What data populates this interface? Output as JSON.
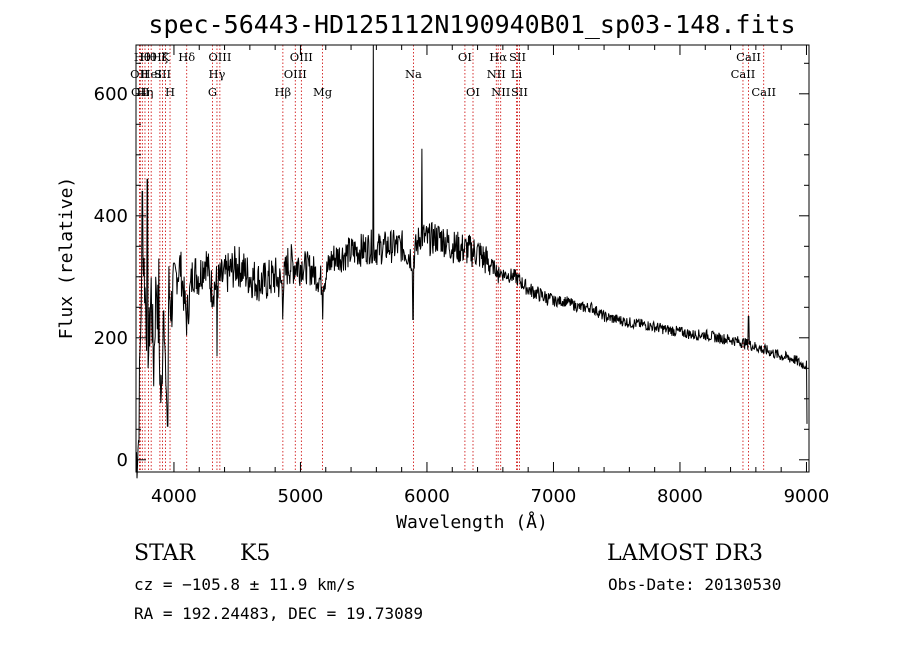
{
  "chart_data": {
    "type": "line",
    "title": "spec-56443-HD125112N190940B01_sp03-148.fits",
    "xlabel": "Wavelength (Å)",
    "ylabel": "Flux (relative)",
    "xlim": [
      3700,
      9020
    ],
    "ylim": [
      -20,
      680
    ],
    "xticks": [
      4000,
      5000,
      6000,
      7000,
      8000,
      9000
    ],
    "yticks": [
      0,
      200,
      400,
      600
    ],
    "series": [
      {
        "name": "spectrum",
        "color": "#000000",
        "anchors": [
          [
            3700,
            0
          ],
          [
            3720,
            30
          ],
          [
            3740,
            260
          ],
          [
            3760,
            330
          ],
          [
            3780,
            240
          ],
          [
            3800,
            180
          ],
          [
            3820,
            280
          ],
          [
            3840,
            150
          ],
          [
            3860,
            300
          ],
          [
            3880,
            200
          ],
          [
            3900,
            80
          ],
          [
            3920,
            290
          ],
          [
            3940,
            60
          ],
          [
            3960,
            280
          ],
          [
            3980,
            250
          ],
          [
            4000,
            290
          ],
          [
            4050,
            320
          ],
          [
            4100,
            230
          ],
          [
            4150,
            310
          ],
          [
            4200,
            300
          ],
          [
            4250,
            330
          ],
          [
            4300,
            280
          ],
          [
            4340,
            290
          ],
          [
            4400,
            300
          ],
          [
            4500,
            320
          ],
          [
            4600,
            300
          ],
          [
            4700,
            290
          ],
          [
            4800,
            300
          ],
          [
            4860,
            285
          ],
          [
            4900,
            320
          ],
          [
            5000,
            320
          ],
          [
            5100,
            310
          ],
          [
            5175,
            290
          ],
          [
            5250,
            330
          ],
          [
            5400,
            340
          ],
          [
            5500,
            345
          ],
          [
            5560,
            350
          ],
          [
            5600,
            345
          ],
          [
            5700,
            350
          ],
          [
            5800,
            350
          ],
          [
            5890,
            330
          ],
          [
            5950,
            370
          ],
          [
            6000,
            360
          ],
          [
            6100,
            365
          ],
          [
            6200,
            350
          ],
          [
            6300,
            345
          ],
          [
            6400,
            340
          ],
          [
            6500,
            320
          ],
          [
            6563,
            310
          ],
          [
            6600,
            305
          ],
          [
            6700,
            300
          ],
          [
            6800,
            280
          ],
          [
            6900,
            270
          ],
          [
            7000,
            260
          ],
          [
            7100,
            260
          ],
          [
            7200,
            250
          ],
          [
            7300,
            250
          ],
          [
            7400,
            235
          ],
          [
            7500,
            230
          ],
          [
            7600,
            225
          ],
          [
            7700,
            222
          ],
          [
            7800,
            218
          ],
          [
            7900,
            213
          ],
          [
            8000,
            210
          ],
          [
            8100,
            205
          ],
          [
            8200,
            205
          ],
          [
            8300,
            200
          ],
          [
            8400,
            197
          ],
          [
            8500,
            192
          ],
          [
            8600,
            185
          ],
          [
            8700,
            178
          ],
          [
            8800,
            170
          ],
          [
            8900,
            165
          ],
          [
            8950,
            158
          ],
          [
            9000,
            155
          ],
          [
            9005,
            30
          ]
        ],
        "spikes": [
          [
            5577,
            680
          ],
          [
            3750,
            440
          ],
          [
            3790,
            460
          ],
          [
            3880,
            330
          ],
          [
            3950,
            55
          ],
          [
            4340,
            170
          ],
          [
            4860,
            230
          ],
          [
            5175,
            230
          ],
          [
            5890,
            230
          ],
          [
            5960,
            510
          ],
          [
            6563,
            290
          ],
          [
            8542,
            235
          ],
          [
            8662,
            175
          ]
        ]
      }
    ],
    "lines": [
      {
        "wave": 3727,
        "label": "OII",
        "row": 2
      },
      {
        "wave": 3734,
        "label": "OII",
        "row": 3
      },
      {
        "wave": 3750,
        "label": "Hθ",
        "row": 1
      },
      {
        "wave": 3771,
        "label": "Hη",
        "row": 3
      },
      {
        "wave": 3798,
        "label": "Hθ",
        "row": 1
      },
      {
        "wave": 3820,
        "label": "HeI",
        "row": 2
      },
      {
        "wave": 3889,
        "label": "Hζ",
        "row": 1
      },
      {
        "wave": 3934,
        "label": "K",
        "row": 1
      },
      {
        "wave": 3969,
        "label": "H",
        "row": 3
      },
      {
        "wave": 3910,
        "label": "SII",
        "row": 2
      },
      {
        "wave": 4101,
        "label": "Hδ",
        "row": 1
      },
      {
        "wave": 4304,
        "label": "G",
        "row": 3
      },
      {
        "wave": 4340,
        "label": "Hγ",
        "row": 2
      },
      {
        "wave": 4363,
        "label": "OIII",
        "row": 1
      },
      {
        "wave": 4861,
        "label": "Hβ",
        "row": 3
      },
      {
        "wave": 4959,
        "label": "OIII",
        "row": 2
      },
      {
        "wave": 5007,
        "label": "OIII",
        "row": 1
      },
      {
        "wave": 5175,
        "label": "Mg",
        "row": 3
      },
      {
        "wave": 5893,
        "label": "Na",
        "row": 2
      },
      {
        "wave": 6300,
        "label": "OI",
        "row": 1
      },
      {
        "wave": 6364,
        "label": "OI",
        "row": 3
      },
      {
        "wave": 6548,
        "label": "NII",
        "row": 2
      },
      {
        "wave": 6563,
        "label": "Hα",
        "row": 1
      },
      {
        "wave": 6583,
        "label": "NII",
        "row": 3
      },
      {
        "wave": 6708,
        "label": "Li",
        "row": 2
      },
      {
        "wave": 6716,
        "label": "SII",
        "row": 1
      },
      {
        "wave": 6731,
        "label": "SII",
        "row": 3
      },
      {
        "wave": 8498,
        "label": "CaII",
        "row": 2
      },
      {
        "wave": 8542,
        "label": "CaII",
        "row": 1
      },
      {
        "wave": 8662,
        "label": "CaII",
        "row": 3
      }
    ],
    "line_color": "#cc0000",
    "grid": false
  },
  "info": {
    "object_class": "STAR",
    "subclass": "K5",
    "survey": "LAMOST DR3",
    "cz": "cz = −105.8 ± 11.9 km/s",
    "obs_date": "Obs-Date: 20130530",
    "coords": "RA = 192.24483, DEC =  19.73089"
  }
}
